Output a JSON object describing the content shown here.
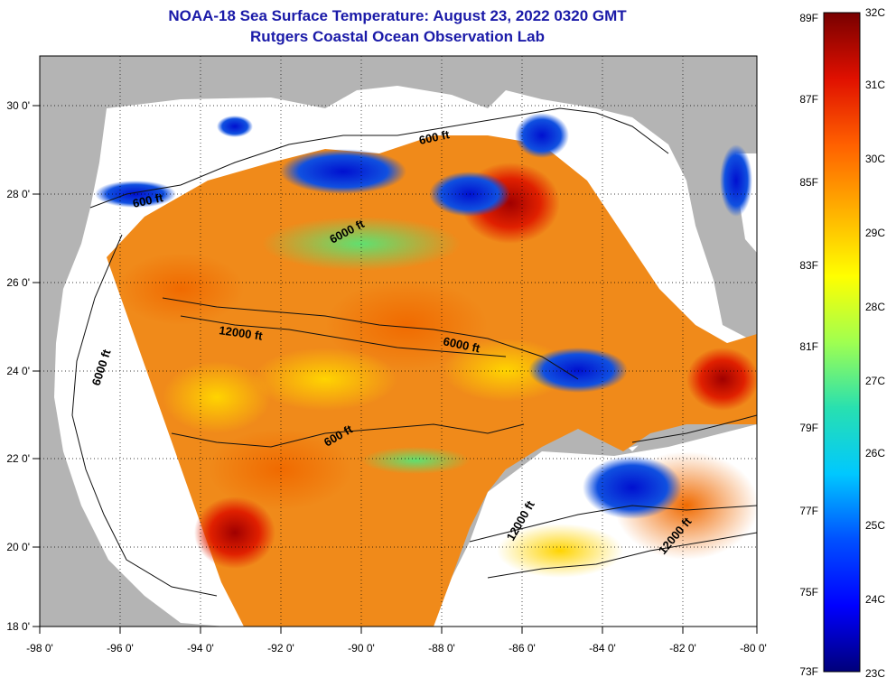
{
  "title": "NOAA-18 Sea Surface Temperature:  August 23, 2022 0320 GMT",
  "subtitle": "Rutgers Coastal Ocean Observation Lab",
  "colorbar": {
    "fahrenheit": [
      "89F",
      "87F",
      "85F",
      "83F",
      "81F",
      "79F",
      "77F",
      "75F",
      "73F"
    ],
    "celsius": [
      "32C",
      "31C",
      "30C",
      "29C",
      "28C",
      "27C",
      "26C",
      "25C",
      "24C",
      "23C"
    ]
  },
  "axes": {
    "longitude_labels": [
      "-98 0'",
      "-96 0'",
      "-94 0'",
      "-92 0'",
      "-90 0'",
      "-88 0'",
      "-86 0'",
      "-84 0'",
      "-82 0'",
      "-80 0'"
    ],
    "latitude_labels": [
      "30 0'",
      "28 0'",
      "26 0'",
      "24 0'",
      "22 0'",
      "20 0'",
      "18 0'"
    ]
  },
  "contour_labels": {
    "c1": "600 ft",
    "c2": "600 ft",
    "c3": "6000 ft",
    "c4": "6000 ft",
    "c5": "12000 ft",
    "c6": "6000 ft",
    "c7": "600 ft",
    "c8": "12000 ft",
    "c9": "12000 ft"
  },
  "colors": {
    "land": "#b4b4b4",
    "no_data": "#ffffff",
    "title": "#1a1aa8"
  }
}
